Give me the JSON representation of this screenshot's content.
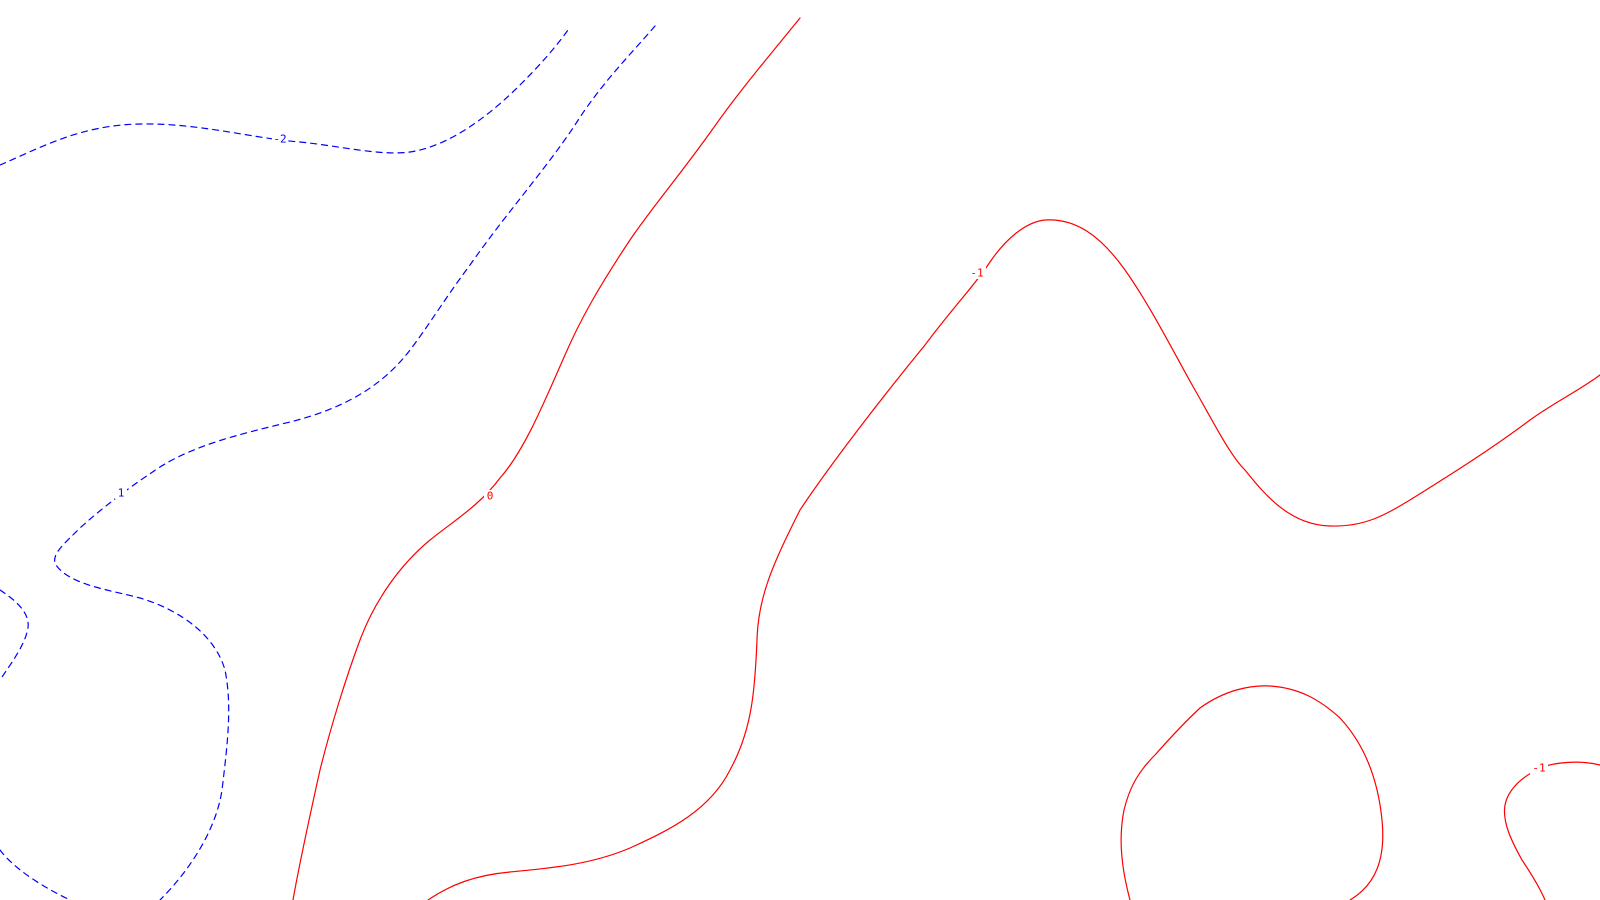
{
  "map": {
    "background_color": "#ffffff",
    "negative_color": "#0000ff",
    "positive_color": "#ff0000",
    "contours": [
      {
        "id": "neg-2",
        "level": -2,
        "style": "dashed",
        "color": "#0000ff"
      },
      {
        "id": "neg-2b",
        "level": -2,
        "style": "dashed",
        "color": "#0000ff"
      },
      {
        "id": "neg-1",
        "level": -1,
        "style": "dashed",
        "color": "#0000ff"
      },
      {
        "id": "neg-1b",
        "level": -1,
        "style": "dashed",
        "color": "#0000ff"
      },
      {
        "id": "zero",
        "level": 0,
        "style": "solid",
        "color": "#ff0000"
      },
      {
        "id": "pos-1a",
        "level": 1,
        "style": "solid",
        "color": "#ff0000"
      },
      {
        "id": "pos-1b",
        "level": 1,
        "style": "solid",
        "color": "#ff0000"
      },
      {
        "id": "pos-1c",
        "level": 1,
        "style": "solid",
        "color": "#ff0000"
      }
    ],
    "labels": {
      "neg2": "-2",
      "neg1": "-1",
      "zero": "0",
      "pos1_top": "1",
      "pos1_bottom": "1"
    }
  }
}
